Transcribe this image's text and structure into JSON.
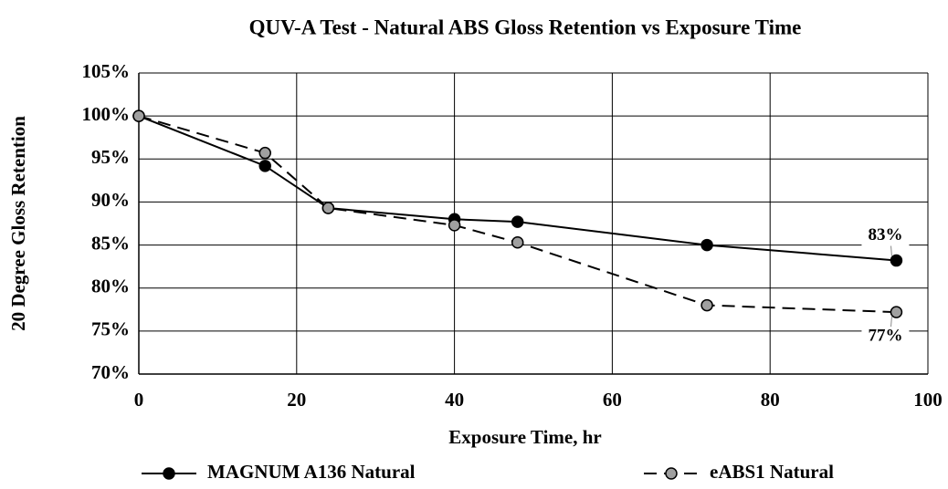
{
  "chart_data": {
    "type": "line",
    "title": "QUV-A Test - Natural ABS Gloss Retention vs Exposure Time",
    "xlabel": "Exposure Time, hr",
    "ylabel": "20 Degree Gloss Retention",
    "x": [
      0,
      16,
      24,
      40,
      48,
      72,
      96
    ],
    "series": [
      {
        "name": "MAGNUM A136 Natural",
        "color": "#000000",
        "marker_fill": "#000000",
        "dashed": false,
        "values": [
          100,
          94.2,
          89.3,
          88,
          87.7,
          85,
          83.2
        ],
        "value_labels": [
          null,
          null,
          null,
          null,
          null,
          null,
          "83%"
        ]
      },
      {
        "name": "eABS1 Natural",
        "color": "#000000",
        "marker_fill": "#a0a0a0",
        "dashed": true,
        "values": [
          100,
          95.7,
          89.3,
          87.3,
          85.3,
          78,
          77.2
        ],
        "value_labels": [
          null,
          null,
          null,
          null,
          null,
          null,
          "77%"
        ]
      }
    ],
    "xlim": [
      0,
      100
    ],
    "xticks": [
      0,
      20,
      40,
      60,
      80,
      100
    ],
    "ylim": [
      70,
      105
    ],
    "yticks": [
      {
        "value": 70,
        "label": "70%"
      },
      {
        "value": 75,
        "label": "75%"
      },
      {
        "value": 80,
        "label": "80%"
      },
      {
        "value": 85,
        "label": "85%"
      },
      {
        "value": 90,
        "label": "90%"
      },
      {
        "value": 95,
        "label": "95%"
      },
      {
        "value": 100,
        "label": "100%"
      },
      {
        "value": 105,
        "label": "105%"
      }
    ],
    "grid": true,
    "legend": "bottom"
  }
}
